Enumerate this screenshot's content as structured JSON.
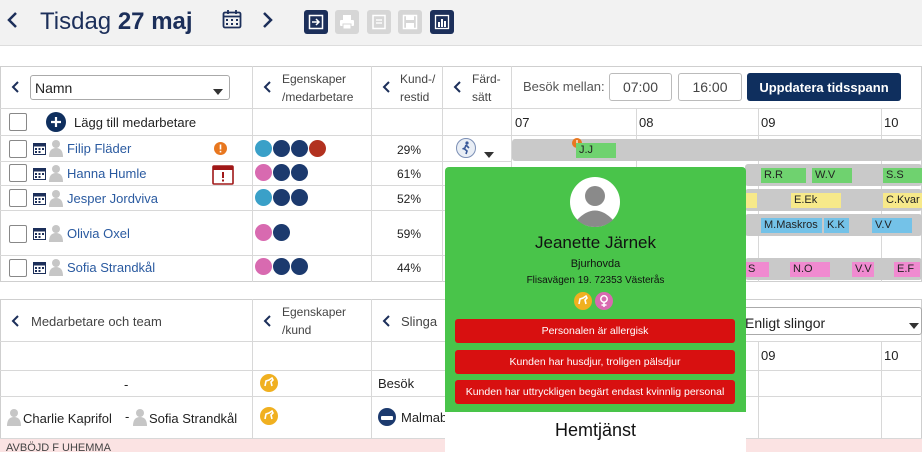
{
  "header": {
    "day": "Tisdag",
    "date": "27 maj",
    "prev_icon": "chevron-left-icon",
    "next_icon": "chevron-right-icon",
    "calendar_icon": "calendar-icon"
  },
  "employees_panel": {
    "sort_label": "Namn",
    "props_header_line1": "Egenskaper",
    "props_header_line2": "/medarbetare",
    "ratio_header_line1": "Kund-/",
    "ratio_header_line2": "restid",
    "travel_header_line1": "Färd-",
    "travel_header_line2": "sätt",
    "add_label": "Lägg till medarbetare",
    "rows": [
      {
        "name": "Filip Fläder",
        "pct": "29%"
      },
      {
        "name": "Hanna Humle",
        "pct": "61%"
      },
      {
        "name": "Jesper Jordviva",
        "pct": "52%"
      },
      {
        "name": "Olivia Oxel",
        "pct": "59%"
      },
      {
        "name": "Sofia Strandkål",
        "pct": "44%"
      }
    ]
  },
  "timeline": {
    "visits_between_label": "Besök mellan:",
    "start_time": "07:00",
    "end_time": "16:00",
    "update_button": "Uppdatera tidsspann",
    "hours": [
      "07",
      "08",
      "09",
      "10"
    ],
    "chips": {
      "row1": [
        "J.J"
      ],
      "row2": [
        "R.R",
        "W.V",
        "S.S"
      ],
      "row3": [
        "E.Ek",
        "C.Kvar"
      ],
      "row4": [
        "M.Maskros",
        "K.K",
        "V.V"
      ],
      "row5": [
        "S",
        "N.O",
        "V.V",
        "E.F"
      ]
    }
  },
  "bottom_panel": {
    "team_header": "Medarbetare och team",
    "props_header_line1": "Egenskaper",
    "props_header_line2": "/kund",
    "route_header": "Slinga",
    "sort_select": "Enligt slingor",
    "hours": [
      "09",
      "10"
    ],
    "row1_team": "-",
    "row1_type": "Besök",
    "row2_member1": "Charlie Kaprifol",
    "row2_sep": "-",
    "row2_member2": "Sofia Strandkål",
    "row2_route": "Malmab",
    "row3_text": "AVBÖJD F UHEMMA"
  },
  "popup": {
    "name": "Jeanette Järnek",
    "area": "Bjurhovda",
    "address": "Flisavägen 19. 72353 Västerås",
    "warnings": [
      "Personalen är allergisk",
      "Kunden har husdjur, troligen pälsdjur",
      "Kunden har uttryckligen begärt endast kvinnlig personal"
    ],
    "service": "Hemtjänst"
  },
  "colors": {
    "navy": "#1c2f5a",
    "popup_green": "#49c44a",
    "warning_red": "#d81010"
  }
}
